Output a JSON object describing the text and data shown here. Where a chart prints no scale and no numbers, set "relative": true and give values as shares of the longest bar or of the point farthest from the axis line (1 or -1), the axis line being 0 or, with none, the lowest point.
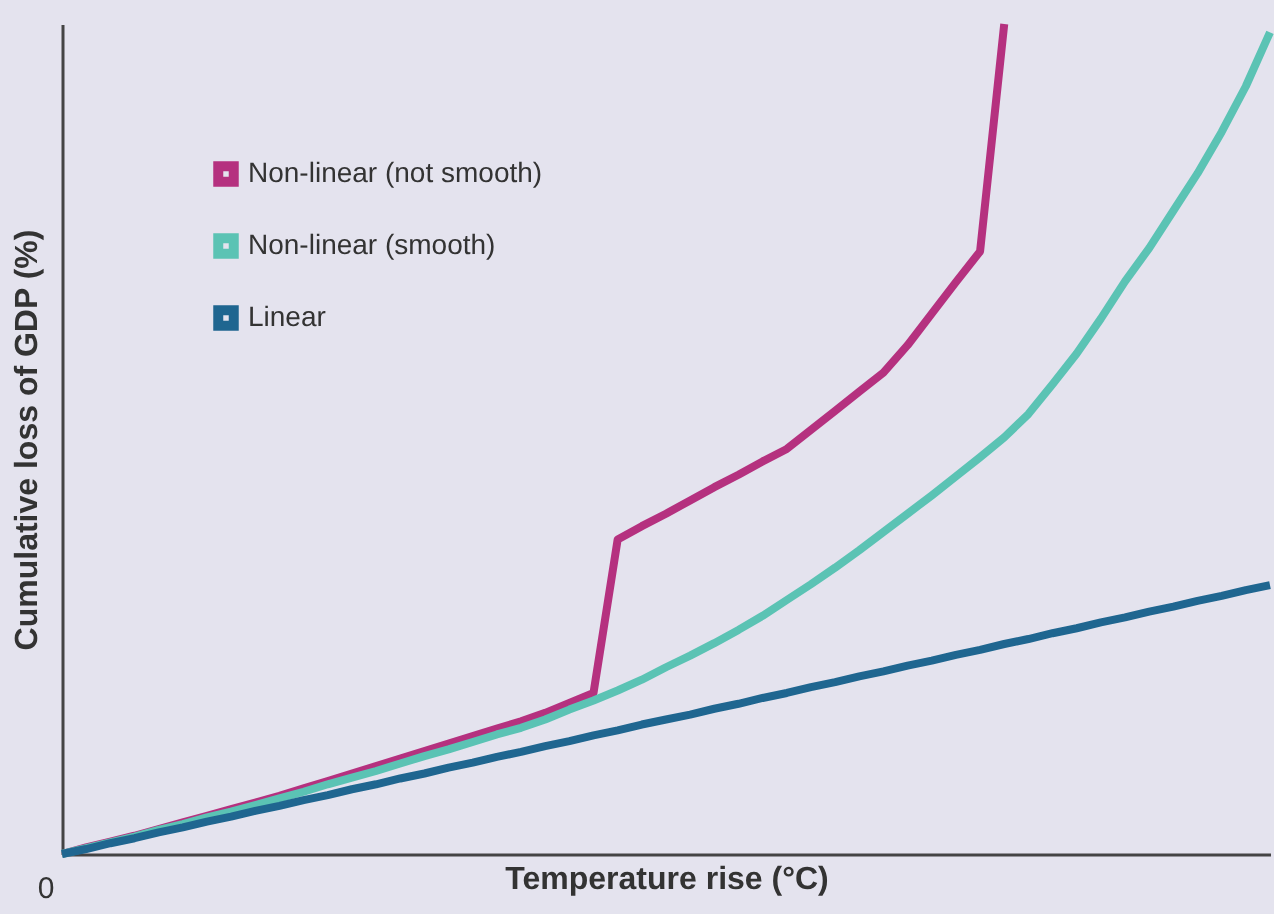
{
  "chart_data": {
    "type": "line",
    "relative": true,
    "xlabel": "Temperature rise (°C)",
    "ylabel": "Cumulative loss of GDP (%)",
    "annotations": [
      "0"
    ],
    "legend": "top left",
    "marker": "none",
    "line_style": "solid",
    "categories": [
      null,
      null,
      null,
      null,
      null,
      null,
      null,
      null,
      null,
      null,
      null,
      null,
      null,
      null,
      null,
      null,
      null,
      null,
      null,
      null,
      null,
      null,
      null,
      null,
      null,
      null,
      null,
      null,
      null,
      null,
      null,
      null,
      null,
      null,
      null,
      null,
      null,
      null,
      null,
      null,
      null,
      null,
      null,
      null,
      null,
      null,
      null,
      null,
      null,
      null,
      null
    ],
    "series": [
      {
        "name": "Non-linear (not smooth)",
        "color": "#b5317f",
        "values": [
          0,
          0.008,
          0.015,
          0.022,
          0.03,
          0.038,
          0.046,
          0.054,
          0.062,
          0.07,
          0.079,
          0.088,
          0.097,
          0.106,
          0.115,
          0.124,
          0.133,
          0.142,
          0.151,
          0.16,
          0.17,
          0.182,
          0.194,
          0.379,
          0.395,
          0.41,
          0.426,
          0.442,
          0.457,
          0.473,
          0.488,
          0.511,
          0.534,
          0.557,
          0.58,
          0.613,
          0.651,
          0.689,
          0.726,
          1.0,
          null,
          null,
          null,
          null,
          null,
          null,
          null,
          null,
          null,
          null,
          null
        ]
      },
      {
        "name": "Non-linear (smooth)",
        "color": "#5bc3b4",
        "values": [
          0,
          0.007,
          0.014,
          0.021,
          0.029,
          0.036,
          0.044,
          0.051,
          0.059,
          0.067,
          0.075,
          0.084,
          0.092,
          0.1,
          0.109,
          0.118,
          0.126,
          0.135,
          0.144,
          0.152,
          0.162,
          0.174,
          0.185,
          0.197,
          0.21,
          0.225,
          0.239,
          0.254,
          0.27,
          0.287,
          0.306,
          0.325,
          0.345,
          0.366,
          0.388,
          0.41,
          0.432,
          0.455,
          0.478,
          0.502,
          0.53,
          0.566,
          0.603,
          0.645,
          0.69,
          0.73,
          0.775,
          0.82,
          0.87,
          0.925,
          0.99
        ]
      },
      {
        "name": "Linear",
        "color": "#1f6690",
        "values": [
          0,
          0.006,
          0.013,
          0.019,
          0.026,
          0.032,
          0.039,
          0.045,
          0.052,
          0.058,
          0.065,
          0.071,
          0.078,
          0.084,
          0.091,
          0.097,
          0.104,
          0.11,
          0.117,
          0.123,
          0.13,
          0.136,
          0.143,
          0.149,
          0.156,
          0.162,
          0.168,
          0.175,
          0.181,
          0.188,
          0.194,
          0.201,
          0.207,
          0.214,
          0.22,
          0.227,
          0.233,
          0.24,
          0.246,
          0.253,
          0.259,
          0.266,
          0.272,
          0.279,
          0.285,
          0.292,
          0.298,
          0.305,
          0.311,
          0.318,
          0.324
        ]
      }
    ]
  }
}
